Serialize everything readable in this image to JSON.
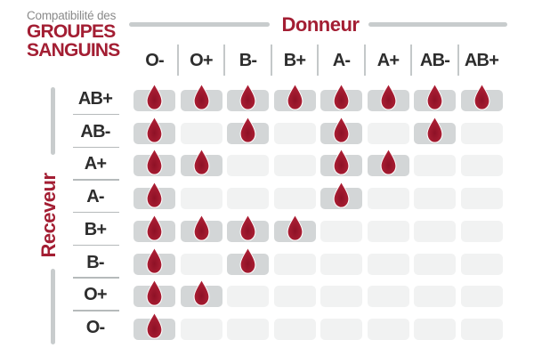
{
  "title": {
    "kicker": "Compatibilité des",
    "line1": "GROUPES",
    "line2": "SANGUINS"
  },
  "donor_label": "Donneur",
  "receiver_label": "Receveur",
  "columns": [
    "O-",
    "O+",
    "B-",
    "B+",
    "A-",
    "A+",
    "AB-",
    "AB+"
  ],
  "rows": [
    {
      "label": "AB+",
      "cells": [
        1,
        1,
        1,
        1,
        1,
        1,
        1,
        1
      ]
    },
    {
      "label": "AB-",
      "cells": [
        1,
        0,
        1,
        0,
        1,
        0,
        1,
        0
      ]
    },
    {
      "label": "A+",
      "cells": [
        1,
        1,
        0,
        0,
        1,
        1,
        0,
        0
      ]
    },
    {
      "label": "A-",
      "cells": [
        1,
        0,
        0,
        0,
        1,
        0,
        0,
        0
      ]
    },
    {
      "label": "B+",
      "cells": [
        1,
        1,
        1,
        1,
        0,
        0,
        0,
        0
      ]
    },
    {
      "label": "B-",
      "cells": [
        1,
        0,
        1,
        0,
        0,
        0,
        0,
        0
      ]
    },
    {
      "label": "O+",
      "cells": [
        1,
        1,
        0,
        0,
        0,
        0,
        0,
        0
      ]
    },
    {
      "label": "O-",
      "cells": [
        1,
        0,
        0,
        0,
        0,
        0,
        0,
        0
      ]
    }
  ],
  "icons": {
    "compatible_marker": "blood-drop-icon"
  },
  "colors": {
    "accent_red": "#a31e33",
    "drop_red": "#a81c30",
    "drop_red_dark": "#8e1126",
    "label_dark": "#2d2d2d",
    "kicker_gray": "#8a8a8a",
    "divider_gray": "#c8cccd",
    "cell_filled": "#d3d6d7",
    "cell_empty": "#f1f2f2"
  },
  "chart_data": {
    "type": "table",
    "title": "Compatibilité des GROUPES SANGUINS",
    "x_axis_label": "Donneur",
    "y_axis_label": "Receveur",
    "columns_donors": [
      "O-",
      "O+",
      "B-",
      "B+",
      "A-",
      "A+",
      "AB-",
      "AB+"
    ],
    "rows_receivers": [
      "AB+",
      "AB-",
      "A+",
      "A-",
      "B+",
      "B-",
      "O+",
      "O-"
    ],
    "compatibility": {
      "AB+": [
        "O-",
        "O+",
        "B-",
        "B+",
        "A-",
        "A+",
        "AB-",
        "AB+"
      ],
      "AB-": [
        "O-",
        "B-",
        "A-",
        "AB-"
      ],
      "A+": [
        "O-",
        "O+",
        "A-",
        "A+"
      ],
      "A-": [
        "O-",
        "A-"
      ],
      "B+": [
        "O-",
        "O+",
        "B-",
        "B+"
      ],
      "B-": [
        "O-",
        "B-"
      ],
      "O+": [
        "O-",
        "O+"
      ],
      "O-": [
        "O-"
      ]
    },
    "marker": "blood drop = compatible",
    "legend_position": "none",
    "grid": "rounded cell matrix"
  }
}
